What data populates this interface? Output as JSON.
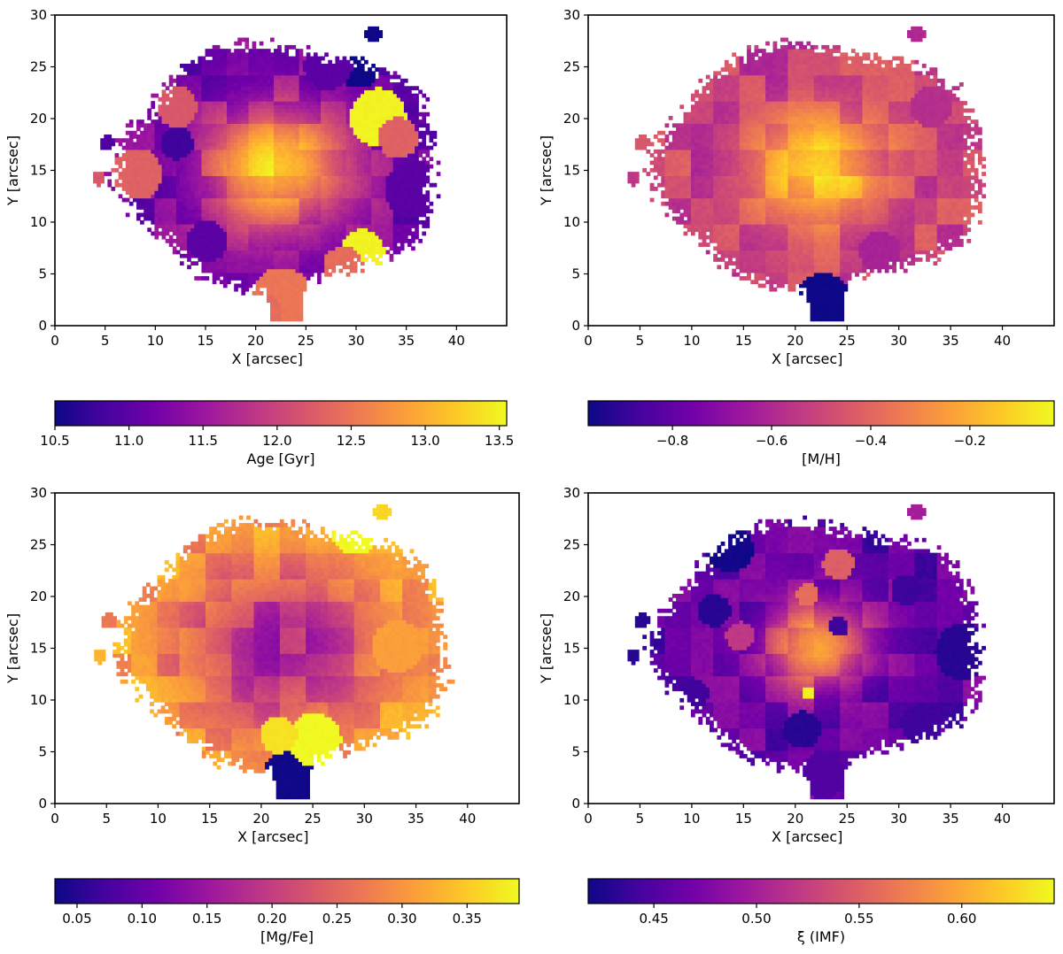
{
  "colormap": {
    "name": "plasma",
    "stops": [
      "#0d0887",
      "#46039f",
      "#7201a8",
      "#9c179e",
      "#bd3786",
      "#d8576b",
      "#ed7953",
      "#fb9f3a",
      "#fdca26",
      "#f0f921"
    ]
  },
  "chart_data": [
    {
      "type": "heatmap",
      "id": "age",
      "xlabel": "X [arcsec]",
      "ylabel": "Y [arcsec]",
      "xlim": [
        0,
        45
      ],
      "ylim": [
        0,
        30
      ],
      "xticks": [
        "0",
        "5",
        "10",
        "15",
        "20",
        "25",
        "30",
        "35",
        "40"
      ],
      "yticks": [
        "0",
        "5",
        "10",
        "15",
        "20",
        "25",
        "30"
      ],
      "colorbar": {
        "label": "Age [Gyr]",
        "range": [
          10.5,
          13.55
        ],
        "ticks": [
          "10.5",
          "11.0",
          "11.5",
          "12.0",
          "12.5",
          "13.0",
          "13.5"
        ],
        "tick_values": [
          10.5,
          11.0,
          11.5,
          12.0,
          12.5,
          13.0,
          13.5
        ]
      },
      "center": [
        22,
        15
      ],
      "radial_profile": {
        "center": 13.2,
        "outer": 11.2,
        "scale": 5
      },
      "blobs": [
        {
          "x": 22.5,
          "y": 2.5,
          "r": 3.0,
          "v": 12.5
        },
        {
          "x": 20.5,
          "y": 1.0,
          "r": 2.0,
          "v": 12.4
        },
        {
          "x": 32.0,
          "y": 20.0,
          "r": 2.8,
          "v": 13.5
        },
        {
          "x": 30.5,
          "y": 7.0,
          "r": 2.2,
          "v": 13.5
        },
        {
          "x": 30.0,
          "y": 25.0,
          "r": 2.2,
          "v": 10.5
        },
        {
          "x": 31.5,
          "y": 28.0,
          "r": 0.8,
          "v": 10.5
        },
        {
          "x": 5.0,
          "y": 17.5,
          "r": 0.8,
          "v": 10.9
        },
        {
          "x": 4.2,
          "y": 14.0,
          "r": 0.7,
          "v": 12.2
        },
        {
          "x": 12.0,
          "y": 17.5,
          "r": 1.6,
          "v": 10.8
        },
        {
          "x": 35.5,
          "y": 13.0,
          "r": 2.8,
          "v": 11.0
        },
        {
          "x": 27.0,
          "y": 25.0,
          "r": 2.4,
          "v": 11.0
        },
        {
          "x": 34.0,
          "y": 18.0,
          "r": 2.0,
          "v": 12.3
        },
        {
          "x": 15.0,
          "y": 8.0,
          "r": 2.0,
          "v": 11.0
        },
        {
          "x": 8.0,
          "y": 14.5,
          "r": 2.5,
          "v": 12.3
        },
        {
          "x": 12.0,
          "y": 21.0,
          "r": 2.0,
          "v": 12.2
        },
        {
          "x": 28.5,
          "y": 5.5,
          "r": 2.0,
          "v": 12.4
        }
      ]
    },
    {
      "type": "heatmap",
      "id": "metallicity",
      "xlabel": "X [arcsec]",
      "ylabel": "Y [arcsec]",
      "xlim": [
        0,
        45
      ],
      "ylim": [
        0,
        30
      ],
      "xticks": [
        "0",
        "5",
        "10",
        "15",
        "20",
        "25",
        "30",
        "35",
        "40"
      ],
      "yticks": [
        "0",
        "5",
        "10",
        "15",
        "20",
        "25",
        "30"
      ],
      "colorbar": {
        "label": "[M/H]",
        "range": [
          -0.97,
          -0.03
        ],
        "ticks": [
          "−0.8",
          "−0.6",
          "−0.4",
          "−0.2"
        ],
        "tick_values": [
          -0.8,
          -0.6,
          -0.4,
          -0.2
        ]
      },
      "center": [
        22,
        15
      ],
      "radial_profile": {
        "center": -0.1,
        "outer": -0.52,
        "scale": 4.5
      },
      "blobs": [
        {
          "x": 22.5,
          "y": 2.5,
          "r": 2.5,
          "v": -0.97
        },
        {
          "x": 23.0,
          "y": 0.8,
          "r": 1.5,
          "v": -0.97
        },
        {
          "x": 5.0,
          "y": 17.5,
          "r": 0.8,
          "v": -0.45
        },
        {
          "x": 4.2,
          "y": 14.0,
          "r": 0.7,
          "v": -0.55
        },
        {
          "x": 31.5,
          "y": 28.0,
          "r": 0.8,
          "v": -0.6
        },
        {
          "x": 28.0,
          "y": 7.0,
          "r": 2.0,
          "v": -0.62
        },
        {
          "x": 33.0,
          "y": 21.0,
          "r": 2.0,
          "v": -0.58
        }
      ]
    },
    {
      "type": "heatmap",
      "id": "mgfe",
      "xlabel": "X [arcsec]",
      "ylabel": "Y [arcsec]",
      "xlim": [
        0,
        45
      ],
      "ylim": [
        0,
        30
      ],
      "xticks": [
        "0",
        "5",
        "10",
        "15",
        "20",
        "25",
        "30",
        "35",
        "40"
      ],
      "yticks": [
        "0",
        "5",
        "10",
        "15",
        "20",
        "25",
        "30"
      ],
      "colorbar": {
        "label": "[Mg/Fe]",
        "range": [
          0.033,
          0.39
        ],
        "ticks": [
          "0.05",
          "0.10",
          "0.15",
          "0.20",
          "0.25",
          "0.30",
          "0.35"
        ],
        "tick_values": [
          0.05,
          0.1,
          0.15,
          0.2,
          0.25,
          0.3,
          0.35
        ]
      },
      "center": [
        22,
        15
      ],
      "radial_profile": {
        "center": 0.17,
        "outer": 0.32,
        "scale": 7
      },
      "blobs": [
        {
          "x": 22.5,
          "y": 2.5,
          "r": 2.5,
          "v": 0.035
        },
        {
          "x": 23.0,
          "y": 0.8,
          "r": 1.5,
          "v": 0.035
        },
        {
          "x": 29.0,
          "y": 26.5,
          "r": 2.6,
          "v": 0.39
        },
        {
          "x": 25.0,
          "y": 6.0,
          "r": 2.6,
          "v": 0.39
        },
        {
          "x": 21.5,
          "y": 6.5,
          "r": 1.8,
          "v": 0.37
        },
        {
          "x": 5.0,
          "y": 17.5,
          "r": 0.8,
          "v": 0.27
        },
        {
          "x": 4.2,
          "y": 14.0,
          "r": 0.7,
          "v": 0.33
        },
        {
          "x": 31.5,
          "y": 28.0,
          "r": 0.8,
          "v": 0.36
        },
        {
          "x": 33.0,
          "y": 15.0,
          "r": 2.5,
          "v": 0.31
        }
      ]
    },
    {
      "type": "heatmap",
      "id": "imf",
      "xlabel": "X [arcsec]",
      "ylabel": "Y [arcsec]",
      "xlim": [
        0,
        45
      ],
      "ylim": [
        0,
        30
      ],
      "xticks": [
        "0",
        "5",
        "10",
        "15",
        "20",
        "25",
        "30",
        "35",
        "40"
      ],
      "yticks": [
        "0",
        "5",
        "10",
        "15",
        "20",
        "25",
        "30"
      ],
      "colorbar": {
        "label": "ξ (IMF)",
        "range": [
          0.418,
          0.645
        ],
        "ticks": [
          "0.45",
          "0.50",
          "0.55",
          "0.60"
        ],
        "tick_values": [
          0.45,
          0.5,
          0.55,
          0.6
        ]
      },
      "center": [
        22,
        15
      ],
      "radial_profile": {
        "center": 0.6,
        "outer": 0.46,
        "scale": 3.5
      },
      "blobs": [
        {
          "x": 13.5,
          "y": 24.5,
          "r": 2.3,
          "v": 0.42
        },
        {
          "x": 36.0,
          "y": 14.5,
          "r": 2.7,
          "v": 0.43
        },
        {
          "x": 12.0,
          "y": 18.5,
          "r": 1.6,
          "v": 0.43
        },
        {
          "x": 30.5,
          "y": 20.5,
          "r": 1.5,
          "v": 0.44
        },
        {
          "x": 20.5,
          "y": 7.0,
          "r": 1.8,
          "v": 0.43
        },
        {
          "x": 32.0,
          "y": 7.5,
          "r": 2.0,
          "v": 0.44
        },
        {
          "x": 24.0,
          "y": 17.0,
          "r": 1.0,
          "v": 0.44
        },
        {
          "x": 21.0,
          "y": 10.5,
          "r": 0.6,
          "v": 0.64
        },
        {
          "x": 21.0,
          "y": 20.0,
          "r": 1.1,
          "v": 0.56
        },
        {
          "x": 24.0,
          "y": 23.0,
          "r": 1.5,
          "v": 0.55
        },
        {
          "x": 5.0,
          "y": 17.5,
          "r": 0.8,
          "v": 0.43
        },
        {
          "x": 4.2,
          "y": 14.0,
          "r": 0.7,
          "v": 0.43
        },
        {
          "x": 31.5,
          "y": 28.0,
          "r": 0.8,
          "v": 0.5
        },
        {
          "x": 22.5,
          "y": 2.5,
          "r": 2.2,
          "v": 0.45
        },
        {
          "x": 10.0,
          "y": 10.5,
          "r": 1.5,
          "v": 0.44
        },
        {
          "x": 14.5,
          "y": 16.0,
          "r": 1.4,
          "v": 0.52
        }
      ]
    }
  ]
}
